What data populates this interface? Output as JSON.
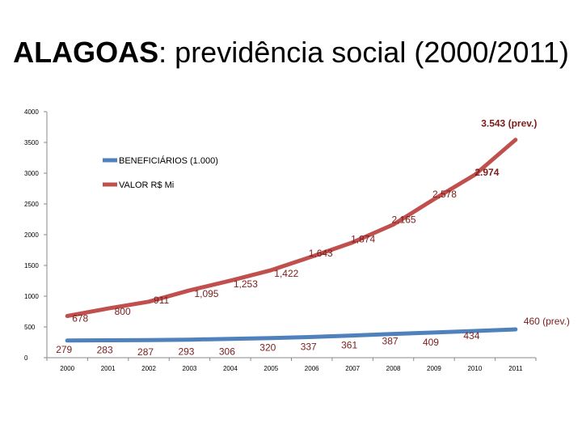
{
  "title": {
    "bold": "ALAGOAS",
    "rest": ": previdência social (2000/2011)"
  },
  "chart_data": {
    "type": "line",
    "title": "ALAGOAS: previdência social (2000/2011)",
    "xlabel": "",
    "ylabel": "",
    "x": [
      "2000",
      "2001",
      "2002",
      "2003",
      "2004",
      "2005",
      "2006",
      "2007",
      "2008",
      "2009",
      "2010",
      "2011"
    ],
    "ylim": [
      0,
      4000
    ],
    "yticks": [
      "0",
      "500",
      "1000",
      "1500",
      "2000",
      "2500",
      "3000",
      "3500",
      "4000"
    ],
    "grid": false,
    "legend_position": "top-left",
    "series": [
      {
        "name": "BENEFICIÁRIOS (1.000)",
        "color": "#4f81bd",
        "values": [
          279,
          283,
          287,
          293,
          306,
          320,
          337,
          361,
          387,
          409,
          434,
          460
        ],
        "labels": [
          "279",
          "283",
          "287",
          "293",
          "306",
          "320",
          "337",
          "361",
          "387",
          "409",
          "434",
          "460 (prev.)"
        ]
      },
      {
        "name": "VALOR  R$ Mi",
        "color": "#c0504d",
        "values": [
          678,
          800,
          911,
          1095,
          1253,
          1422,
          1643,
          1874,
          2165,
          2578,
          2974,
          3543
        ],
        "labels": [
          "678",
          "800",
          "911",
          "1,095",
          "1,253",
          "1,422",
          "1,643",
          "1,874",
          "2,165",
          "2,578",
          "2.974",
          "3.543 (prev.)"
        ]
      }
    ]
  }
}
